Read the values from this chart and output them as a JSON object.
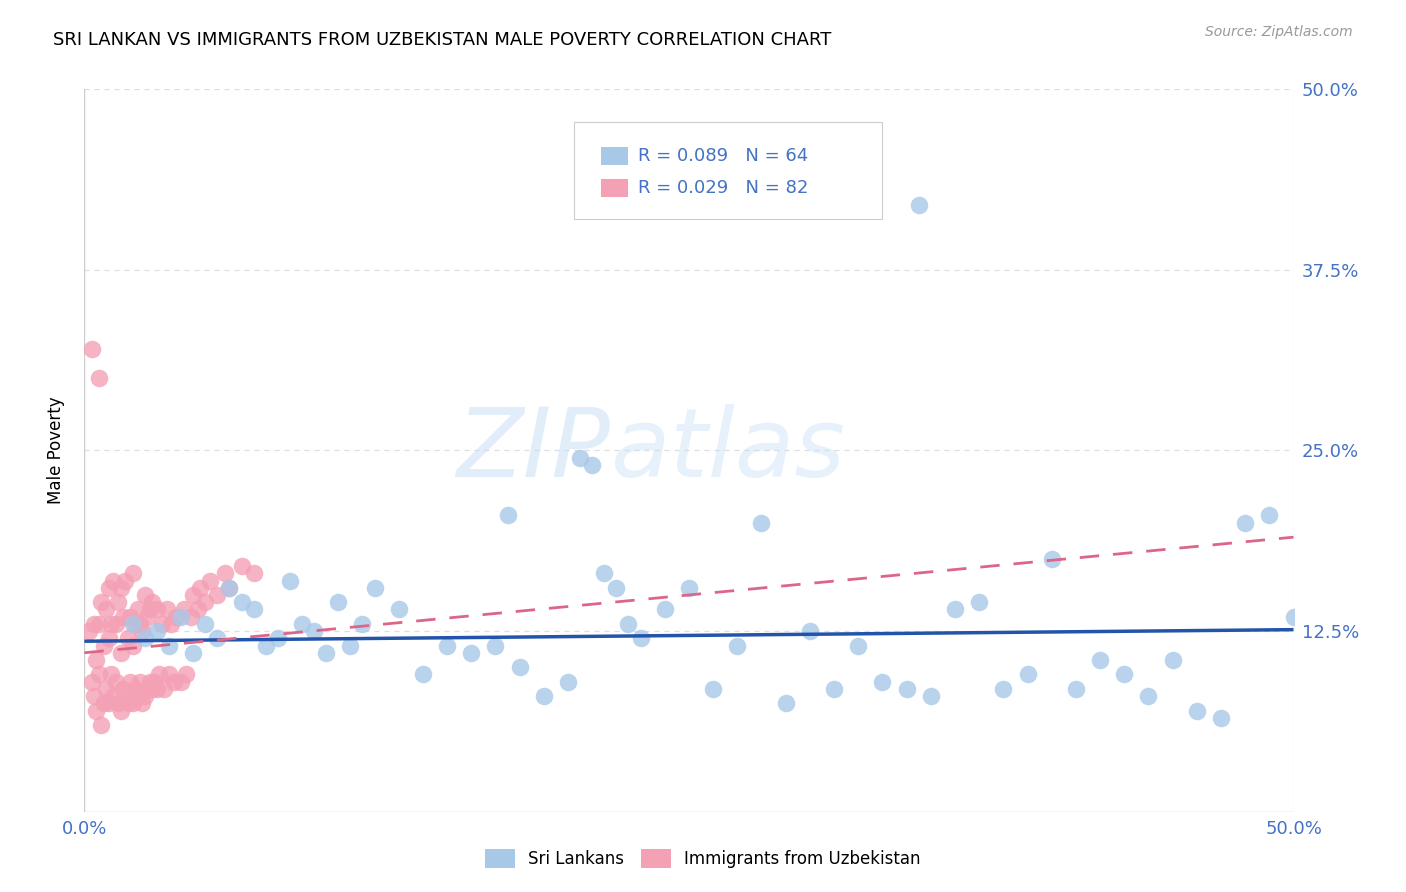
{
  "title": "SRI LANKAN VS IMMIGRANTS FROM UZBEKISTAN MALE POVERTY CORRELATION CHART",
  "source": "Source: ZipAtlas.com",
  "ylabel": "Male Poverty",
  "sri_lankans_R": 0.089,
  "sri_lankans_N": 64,
  "uzbekistan_R": 0.029,
  "uzbekistan_N": 82,
  "legend_label_1": "Sri Lankans",
  "legend_label_2": "Immigrants from Uzbekistan",
  "sri_color": "#a8c8e8",
  "uzbek_color": "#f4a0b5",
  "trendline_sri_color": "#2255aa",
  "trendline_uzbek_color": "#dd6688",
  "background_color": "#ffffff",
  "watermark_zip": "ZIP",
  "watermark_atlas": "atlas",
  "grid_color": "#dddddd",
  "axis_color": "#cccccc",
  "tick_label_color": "#4472c4",
  "title_fontsize": 13,
  "source_fontsize": 10,
  "tick_fontsize": 13,
  "ylabel_fontsize": 12
}
